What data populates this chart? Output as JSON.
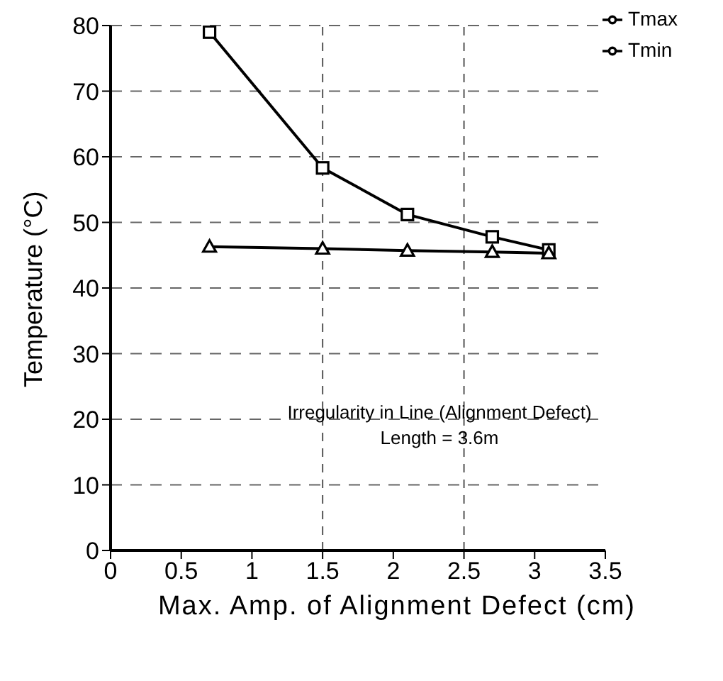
{
  "chart_data": {
    "type": "line",
    "xlabel": "Max. Amp. of Alignment Defect (cm)",
    "ylabel": "Temperature (°C)",
    "x": [
      0.7,
      1.5,
      2.1,
      2.7,
      3.1
    ],
    "series": [
      {
        "name": "Tmax",
        "color": "#000000",
        "marker": "square",
        "values": [
          79,
          58.3,
          51.2,
          47.8,
          45.8
        ]
      },
      {
        "name": "Tmin",
        "color": "#000000",
        "marker": "triangle",
        "values": [
          46.3,
          46,
          45.7,
          45.5,
          45.3
        ]
      }
    ],
    "xlim": [
      0,
      3.5
    ],
    "xticks": [
      0,
      0.5,
      1,
      1.5,
      2,
      2.5,
      3,
      3.5
    ],
    "ylim": [
      0,
      80
    ],
    "yticks": [
      0,
      10,
      20,
      30,
      40,
      50,
      60,
      70,
      80
    ],
    "grid": "y",
    "legend": "top right",
    "line_style": "solid",
    "ref_lines": [
      {
        "axis": "x",
        "value": 1.5,
        "line_style": "dashed"
      },
      {
        "axis": "x",
        "value": 2.5,
        "line_style": "dashed"
      }
    ],
    "annotations": [
      "Irregularity in Line (Alignment Defect)",
      "Length = 3.6m"
    ]
  }
}
